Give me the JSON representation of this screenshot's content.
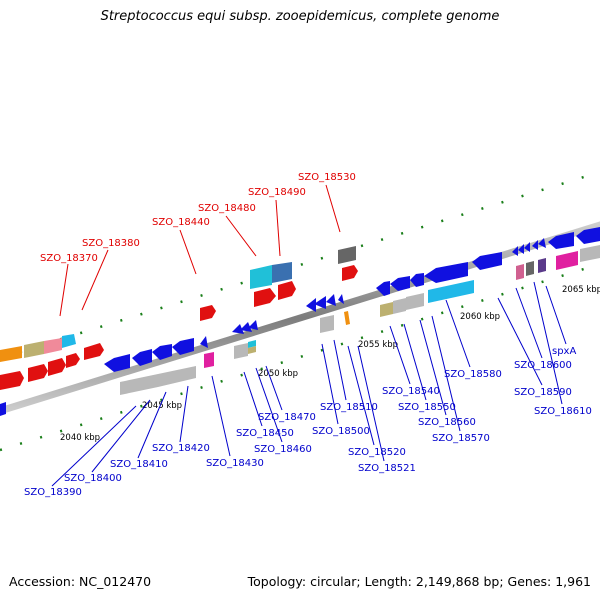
{
  "title": "Streptococcus equi subsp. zooepidemicus, complete genome",
  "footer": {
    "accession": "Accession: NC_012470",
    "stats": "Topology: circular; Length: 2,149,868 bp; Genes: 1,961"
  },
  "colors": {
    "backbone": "#888888",
    "label_forward": "#e00000",
    "label_reverse": "#0000cc",
    "forward_ticks": "#1a7f1a",
    "reverse_ticks": "#1a7f1a"
  },
  "scale_labels": [
    "2040 kbp",
    "2045 kbp",
    "2050 kbp",
    "2055 kbp",
    "2060 kbp",
    "2065 kbp"
  ],
  "forward_labels": [
    "SZO_18370",
    "SZO_18380",
    "SZO_18440",
    "SZO_18480",
    "SZO_18490",
    "SZO_18530"
  ],
  "reverse_labels": [
    "SZO_18390",
    "SZO_18400",
    "SZO_18410",
    "SZO_18420",
    "SZO_18430",
    "SZO_18450",
    "SZO_18460",
    "SZO_18470",
    "SZO_18500",
    "SZO_18510",
    "SZO_18520",
    "SZO_18521",
    "SZO_18540",
    "SZO_18550",
    "SZO_18560",
    "SZO_18570",
    "SZO_18580",
    "SZO_18590",
    "SZO_18600",
    "spxA",
    "SZO_18610"
  ]
}
